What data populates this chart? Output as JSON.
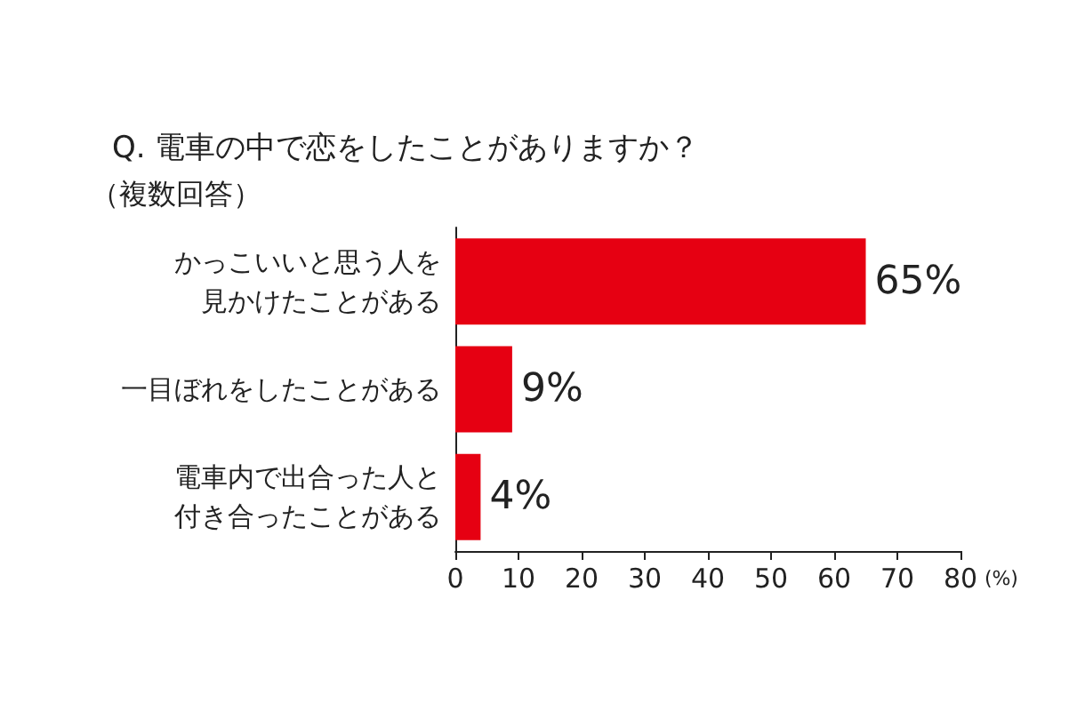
{
  "chart_data": {
    "type": "bar",
    "orientation": "horizontal",
    "title": "Q. 電車の中で恋をしたことがありますか？",
    "subtitle": "（複数回答）",
    "xlabel": "(%)",
    "categories": [
      "かっこいいと思う人を見かけたことがある",
      "一目ぼれをしたことがある",
      "電車内で出合った人と付き合ったことがある"
    ],
    "values": [
      65,
      9,
      4
    ],
    "value_labels": [
      "65%",
      "9%",
      "4%"
    ],
    "color": "#e60012",
    "xlim": [
      0,
      80
    ],
    "xticks": [
      0,
      10,
      20,
      30,
      40,
      50,
      60,
      70,
      80
    ],
    "grid": false
  }
}
